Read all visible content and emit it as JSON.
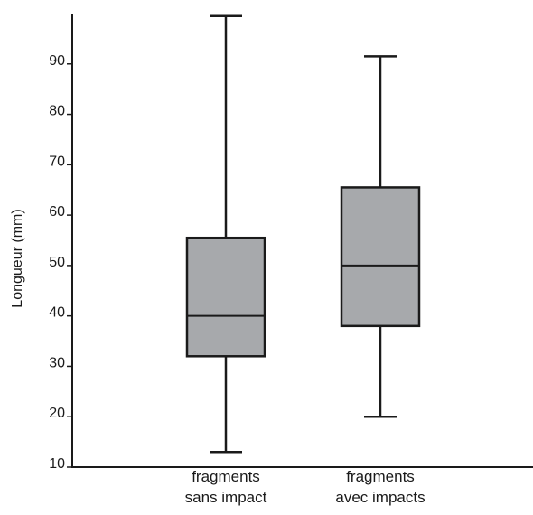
{
  "chart_data": {
    "type": "boxplot",
    "ylabel": "Longueur (mm)",
    "xlabel": "",
    "title": "",
    "ylim": [
      10,
      100
    ],
    "yticks": [
      10,
      20,
      30,
      40,
      50,
      60,
      70,
      80,
      90
    ],
    "grid": false,
    "box_color": "#a7a9ac",
    "line_color": "#1a1a1a",
    "categories": [
      {
        "lines": [
          "fragments",
          "sans impact"
        ]
      },
      {
        "lines": [
          "fragments",
          "avec impacts"
        ]
      }
    ],
    "series": [
      {
        "min": 13,
        "q1": 32,
        "median": 40,
        "q3": 55.5,
        "max": 99.5
      },
      {
        "min": 20,
        "q1": 38,
        "median": 50,
        "q3": 65.5,
        "max": 91.5
      }
    ]
  }
}
